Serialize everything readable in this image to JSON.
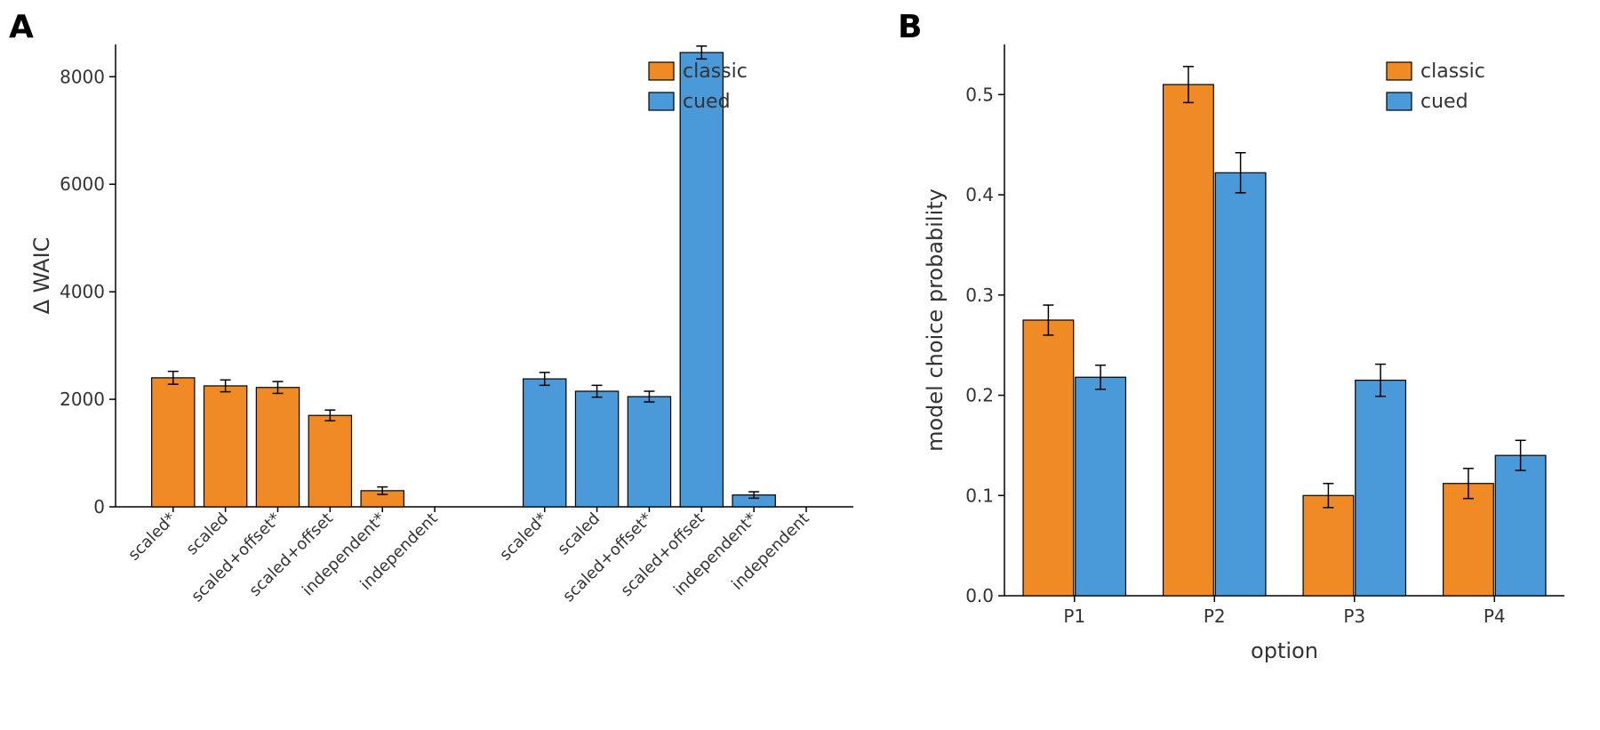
{
  "panelA": {
    "label": "A",
    "type": "bar",
    "ylabel": "Δ WAIC",
    "ylim": [
      0,
      8600
    ],
    "yticks": [
      0,
      2000,
      4000,
      6000,
      8000
    ],
    "categories": [
      "scaled*",
      "scaled",
      "scaled+offset*",
      "scaled+offset",
      "independent*",
      "independent"
    ],
    "groups": [
      {
        "name": "classic",
        "color": "#f08a24",
        "values": [
          2400,
          2250,
          2220,
          1700,
          300,
          0
        ],
        "errors": [
          120,
          110,
          110,
          100,
          70,
          0
        ]
      },
      {
        "name": "cued",
        "color": "#4a9ad9",
        "values": [
          2380,
          2150,
          2050,
          8450,
          220,
          0
        ],
        "errors": [
          120,
          110,
          100,
          120,
          60,
          0
        ]
      }
    ],
    "bar_width": 0.82,
    "group_gap": 1.1,
    "label_fontsize": 18,
    "axis_label_fontsize": 24,
    "legend": {
      "labels": [
        "classic",
        "cued"
      ],
      "colors": [
        "#f08a24",
        "#4a9ad9"
      ]
    }
  },
  "panelB": {
    "label": "B",
    "type": "bar",
    "ylabel": "model choice probability",
    "xlabel": "option",
    "ylim": [
      0,
      0.55
    ],
    "yticks": [
      0.0,
      0.1,
      0.2,
      0.3,
      0.4,
      0.5
    ],
    "categories": [
      "P1",
      "P2",
      "P3",
      "P4"
    ],
    "series": [
      {
        "name": "classic",
        "color": "#f08a24",
        "values": [
          0.275,
          0.51,
          0.1,
          0.112
        ],
        "errors": [
          0.015,
          0.018,
          0.012,
          0.015
        ]
      },
      {
        "name": "cued",
        "color": "#4a9ad9",
        "values": [
          0.218,
          0.422,
          0.215,
          0.14
        ],
        "errors": [
          0.012,
          0.02,
          0.016,
          0.015
        ]
      }
    ],
    "bar_width": 0.36,
    "label_fontsize": 20,
    "axis_label_fontsize": 24,
    "legend": {
      "labels": [
        "classic",
        "cued"
      ],
      "colors": [
        "#f08a24",
        "#4a9ad9"
      ]
    }
  },
  "background_color": "#ffffff",
  "text_color": "#333333"
}
